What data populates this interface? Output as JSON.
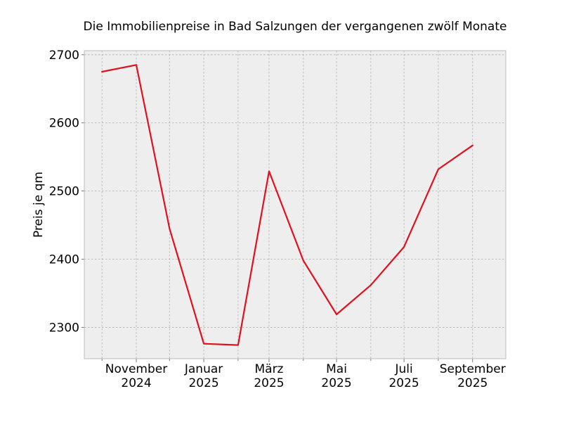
{
  "chart_data": {
    "type": "line",
    "title": "Die Immobilienpreise in Bad Salzungen der vergangenen zwölf Monate",
    "xlabel": "",
    "ylabel": "Preis je qm",
    "x": [
      "2024-10",
      "2024-11",
      "2024-12",
      "2025-01",
      "2025-02",
      "2025-03",
      "2025-04",
      "2025-05",
      "2025-06",
      "2025-07",
      "2025-08",
      "2025-09"
    ],
    "series": [
      {
        "values": [
          2675,
          2685,
          2445,
          2276,
          2274,
          2529,
          2398,
          2319,
          2362,
          2418,
          2532,
          2567
        ]
      }
    ],
    "xlim": [
      "2024-09-15",
      "2025-09-31"
    ],
    "ylim": [
      2254,
      2706
    ],
    "yticks": [
      2300,
      2400,
      2500,
      2600,
      2700
    ],
    "xtick_labels": [
      {
        "x": "2024-11",
        "line1": "November",
        "line2": "2024"
      },
      {
        "x": "2025-01",
        "line1": "Januar",
        "line2": "2025"
      },
      {
        "x": "2025-03",
        "line1": "März",
        "line2": "2025"
      },
      {
        "x": "2025-05",
        "line1": "Mai",
        "line2": "2025"
      },
      {
        "x": "2025-07",
        "line1": "Juli",
        "line2": "2025"
      },
      {
        "x": "2025-09",
        "line1": "September",
        "line2": "2025"
      }
    ],
    "minor_xticks": [
      "2024-10",
      "2024-12",
      "2025-02",
      "2025-04",
      "2025-06",
      "2025-08"
    ],
    "grid": true,
    "line_color": "#e0111f",
    "plot_background": "#eeeeee",
    "spine_color": "#bcbcbc"
  }
}
